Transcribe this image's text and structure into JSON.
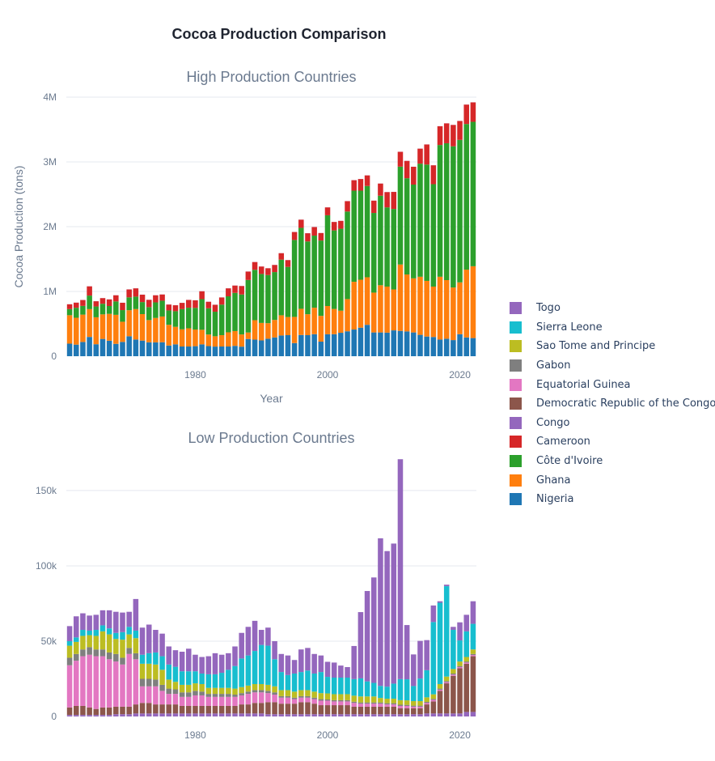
{
  "figure": {
    "title": "Cocoa Production Comparison"
  },
  "chart_data": [
    {
      "type": "bar",
      "stacked": true,
      "title": "High Production Countries",
      "xlabel": "Year",
      "ylabel": "Cocoa Production (tons)",
      "ylim": [
        0,
        4000000
      ],
      "y_ticks": [
        0,
        1000000,
        2000000,
        3000000,
        4000000
      ],
      "y_tick_labels": [
        "0",
        "1M",
        "2M",
        "3M",
        "4M"
      ],
      "x_ticks": [
        1980,
        2000,
        2020
      ],
      "x_tick_labels": [
        "1980",
        "2000",
        "2020"
      ],
      "grid": true,
      "x": [
        1961,
        1962,
        1963,
        1964,
        1965,
        1966,
        1967,
        1968,
        1969,
        1970,
        1971,
        1972,
        1973,
        1974,
        1975,
        1976,
        1977,
        1978,
        1979,
        1980,
        1981,
        1982,
        1983,
        1984,
        1985,
        1986,
        1987,
        1988,
        1989,
        1990,
        1991,
        1992,
        1993,
        1994,
        1995,
        1996,
        1997,
        1998,
        1999,
        2000,
        2001,
        2002,
        2003,
        2004,
        2005,
        2006,
        2007,
        2008,
        2009,
        2010,
        2011,
        2012,
        2013,
        2014,
        2015,
        2016,
        2017,
        2018,
        2019,
        2020,
        2021,
        2022
      ],
      "series": [
        {
          "name": "Nigeria",
          "color": "#1f77b4",
          "values": [
            194000,
            179000,
            220000,
            298000,
            185000,
            267000,
            239000,
            191000,
            221000,
            308000,
            258000,
            241000,
            215000,
            214000,
            216000,
            165000,
            183000,
            150000,
            150000,
            155000,
            183000,
            156000,
            149000,
            150000,
            150000,
            160000,
            148000,
            266000,
            256000,
            244000,
            270000,
            290000,
            320000,
            325000,
            203000,
            328000,
            325000,
            340000,
            225000,
            339000,
            340000,
            362000,
            385000,
            412000,
            441000,
            485000,
            367000,
            367000,
            364000,
            399000,
            391000,
            383000,
            367000,
            330000,
            304000,
            297000,
            257000,
            270000,
            249000,
            340000,
            290000,
            280000
          ]
        },
        {
          "name": "Ghana",
          "color": "#ff7f0e",
          "values": [
            439000,
            415000,
            422000,
            429000,
            416000,
            379000,
            415000,
            448000,
            311000,
            402000,
            470000,
            409000,
            343000,
            377000,
            397000,
            320000,
            271000,
            265000,
            281000,
            257000,
            225000,
            179000,
            159000,
            175000,
            219000,
            228000,
            188000,
            100000,
            300000,
            270000,
            240000,
            270000,
            312000,
            280000,
            404000,
            404000,
            323000,
            409000,
            398000,
            436000,
            390000,
            341000,
            497000,
            737000,
            740000,
            734000,
            615000,
            729000,
            711000,
            632000,
            1025000,
            879000,
            835000,
            897000,
            859000,
            778000,
            970000,
            905000,
            812000,
            800000,
            1047000,
            1109000
          ]
        },
        {
          "name": "Côte d'Ivoire",
          "color": "#2ca02c",
          "values": [
            94000,
            154000,
            135000,
            209000,
            167000,
            164000,
            121000,
            207000,
            180000,
            199000,
            192000,
            186000,
            200000,
            240000,
            244000,
            222000,
            241000,
            312000,
            318000,
            334000,
            473000,
            405000,
            379000,
            472000,
            556000,
            590000,
            617000,
            811000,
            778000,
            756000,
            743000,
            739000,
            859000,
            774000,
            1188000,
            1250000,
            1124000,
            1113000,
            1163000,
            1401000,
            1212000,
            1265000,
            1352000,
            1407000,
            1375000,
            1409000,
            1230000,
            1382000,
            1223000,
            1242000,
            1511000,
            1486000,
            1448000,
            1746000,
            1796000,
            1581000,
            2034000,
            2113000,
            2180000,
            2200000,
            2248000,
            2230000
          ]
        },
        {
          "name": "Cameroon",
          "color": "#d62728",
          "values": [
            75000,
            79000,
            91000,
            143000,
            81000,
            87000,
            102000,
            95000,
            113000,
            122000,
            128000,
            114000,
            113000,
            110000,
            96000,
            91000,
            92000,
            97000,
            120000,
            117000,
            122000,
            101000,
            107000,
            110000,
            123000,
            113000,
            131000,
            130000,
            120000,
            115000,
            105000,
            110000,
            100000,
            105000,
            123000,
            126000,
            127000,
            132000,
            116000,
            122000,
            131000,
            122000,
            160000,
            162000,
            180000,
            164000,
            190000,
            188000,
            236000,
            264000,
            229000,
            268000,
            275000,
            232000,
            310000,
            292000,
            290000,
            307000,
            330000,
            292000,
            300000,
            300000
          ]
        },
        {
          "name": "Congo",
          "color": "#9467bd",
          "values": [
            1000,
            1000,
            1000,
            1000,
            1000,
            1000,
            1000,
            1000,
            1000,
            1000,
            1000,
            1000,
            1000,
            1000,
            1000,
            1000,
            1000,
            1000,
            1000,
            1000,
            1000,
            1000,
            1000,
            1000,
            1000,
            1000,
            1000,
            1000,
            1000,
            1000,
            1000,
            1000,
            1000,
            1000,
            1000,
            1000,
            1000,
            1000,
            1000,
            1000,
            1000,
            1000,
            1000,
            1000,
            1000,
            1000,
            1000,
            1000,
            1000,
            1000,
            1000,
            1000,
            1000,
            1000,
            1000,
            1000,
            1000,
            1000,
            1000,
            1000,
            1000,
            1000
          ]
        }
      ]
    },
    {
      "type": "bar",
      "stacked": true,
      "title": "Low Production Countries",
      "ylim": [
        0,
        172000
      ],
      "y_ticks": [
        0,
        50000,
        100000,
        150000
      ],
      "y_tick_labels": [
        "0",
        "50k",
        "100k",
        "150k"
      ],
      "x_ticks": [
        1980,
        2000,
        2020
      ],
      "x_tick_labels": [
        "1980",
        "2000",
        "2020"
      ],
      "grid": true,
      "x": [
        1961,
        1962,
        1963,
        1964,
        1965,
        1966,
        1967,
        1968,
        1969,
        1970,
        1971,
        1972,
        1973,
        1974,
        1975,
        1976,
        1977,
        1978,
        1979,
        1980,
        1981,
        1982,
        1983,
        1984,
        1985,
        1986,
        1987,
        1988,
        1989,
        1990,
        1991,
        1992,
        1993,
        1994,
        1995,
        1996,
        1997,
        1998,
        1999,
        2000,
        2001,
        2002,
        2003,
        2004,
        2005,
        2006,
        2007,
        2008,
        2009,
        2010,
        2011,
        2012,
        2013,
        2014,
        2015,
        2016,
        2017,
        2018,
        2019,
        2020,
        2021,
        2022
      ],
      "series": [
        {
          "name": "Congo",
          "color": "#9467bd",
          "values": [
            1000,
            1000,
            1000,
            1000,
            1000,
            1000,
            1000,
            1500,
            1500,
            1500,
            2000,
            2000,
            2000,
            2000,
            2000,
            2000,
            2000,
            2000,
            2000,
            2000,
            2000,
            2000,
            2000,
            2000,
            2000,
            2000,
            2000,
            2000,
            2000,
            2000,
            1500,
            1500,
            1500,
            1500,
            1500,
            1500,
            1500,
            1500,
            1500,
            1500,
            1500,
            1500,
            1500,
            1500,
            1500,
            1500,
            1500,
            1500,
            1500,
            1500,
            1500,
            1500,
            1500,
            1500,
            2000,
            2000,
            2000,
            2000,
            2000,
            2000,
            3000,
            3000
          ]
        },
        {
          "name": "Democratic Republic of the Congo",
          "color": "#8c564b",
          "values": [
            5000,
            6000,
            6000,
            5000,
            4000,
            5000,
            5000,
            5000,
            5000,
            5000,
            6000,
            7000,
            7000,
            6000,
            6000,
            6000,
            6000,
            5000,
            5000,
            5000,
            5000,
            5000,
            5000,
            5000,
            5000,
            5000,
            6000,
            6000,
            7000,
            7000,
            8000,
            8000,
            7000,
            7000,
            7000,
            8000,
            8000,
            7000,
            6000,
            6000,
            6000,
            6000,
            6000,
            5000,
            5000,
            5000,
            5000,
            5000,
            5000,
            5000,
            4000,
            4000,
            4000,
            4000,
            6000,
            8000,
            15000,
            20000,
            25000,
            30000,
            32000,
            37000
          ]
        },
        {
          "name": "Equatorial Guinea",
          "color": "#e377c2",
          "values": [
            28000,
            30000,
            33000,
            35000,
            35000,
            34000,
            32000,
            30000,
            28000,
            35000,
            30000,
            11000,
            11000,
            12000,
            9000,
            7000,
            7000,
            6000,
            6000,
            7000,
            7000,
            6000,
            6000,
            6000,
            6000,
            6000,
            6000,
            7000,
            7000,
            7000,
            6000,
            5000,
            4000,
            4000,
            3000,
            3000,
            3000,
            3000,
            3000,
            3000,
            2500,
            2500,
            2500,
            2500,
            2000,
            2000,
            2000,
            2000,
            1500,
            1500,
            1500,
            1500,
            1000,
            1000,
            1000,
            1000,
            800,
            800,
            800,
            800,
            800,
            800
          ]
        },
        {
          "name": "Gabon",
          "color": "#7f7f7f",
          "values": [
            5000,
            4500,
            4500,
            5000,
            4500,
            4500,
            4500,
            5000,
            4500,
            4000,
            4000,
            5000,
            5000,
            4500,
            4000,
            3500,
            3000,
            3000,
            3000,
            3000,
            2500,
            2000,
            2000,
            2000,
            2000,
            1500,
            1500,
            1500,
            1500,
            1500,
            1500,
            1500,
            1000,
            1000,
            1000,
            1000,
            1000,
            1000,
            1000,
            800,
            800,
            800,
            800,
            800,
            800,
            800,
            800,
            800,
            800,
            800,
            800,
            700,
            700,
            700,
            700,
            700,
            700,
            700,
            700,
            700,
            700,
            700
          ]
        },
        {
          "name": "Sao Tome and Principe",
          "color": "#bcbd22",
          "values": [
            8000,
            8000,
            9000,
            8000,
            9000,
            12000,
            12000,
            10000,
            12000,
            9000,
            10000,
            10000,
            10000,
            10000,
            10000,
            6000,
            5000,
            5000,
            5000,
            5000,
            5000,
            4000,
            4000,
            4000,
            4000,
            4000,
            4000,
            4000,
            4000,
            4000,
            4000,
            4000,
            4000,
            4000,
            4000,
            4000,
            4000,
            4000,
            4000,
            4000,
            4000,
            4000,
            4000,
            4000,
            4000,
            4000,
            4000,
            3000,
            3000,
            3000,
            3000,
            3000,
            3000,
            3000,
            3000,
            3000,
            3000,
            3000,
            3000,
            3000,
            3000,
            3000
          ]
        },
        {
          "name": "Sierra Leone",
          "color": "#17becf",
          "values": [
            3000,
            3000,
            4000,
            3000,
            4000,
            4000,
            4000,
            4000,
            5000,
            5000,
            5000,
            6000,
            7000,
            8000,
            9000,
            10000,
            10000,
            9000,
            9000,
            8000,
            7000,
            9000,
            9000,
            10000,
            12000,
            15000,
            19000,
            20000,
            22000,
            26000,
            26000,
            18000,
            12000,
            10000,
            12000,
            12000,
            13000,
            12000,
            14000,
            11000,
            11000,
            11000,
            11000,
            11000,
            12000,
            10000,
            9000,
            8000,
            8000,
            10000,
            14000,
            14000,
            10000,
            15000,
            18000,
            48000,
            54000,
            60000,
            26000,
            14000,
            17000,
            17000
          ]
        },
        {
          "name": "Togo",
          "color": "#9467bd",
          "values": [
            10000,
            14000,
            11000,
            10000,
            10000,
            10000,
            12000,
            14000,
            13000,
            10000,
            21000,
            18000,
            19000,
            15000,
            15000,
            12000,
            11000,
            13000,
            15000,
            11000,
            11000,
            12000,
            14000,
            12000,
            11000,
            13000,
            17000,
            19000,
            20000,
            10000,
            12000,
            12000,
            12000,
            13000,
            9000,
            15000,
            15000,
            13000,
            11000,
            10000,
            10000,
            8000,
            7000,
            22000,
            44000,
            60000,
            70000,
            98000,
            90000,
            93000,
            146000,
            36000,
            21000,
            25000,
            20000,
            11000,
            1000,
            1000,
            2000,
            12000,
            11000,
            15000
          ]
        }
      ]
    }
  ],
  "legend": [
    {
      "label": "Togo",
      "color": "#9467bd"
    },
    {
      "label": "Sierra Leone",
      "color": "#17becf"
    },
    {
      "label": "Sao Tome and Principe",
      "color": "#bcbd22"
    },
    {
      "label": "Gabon",
      "color": "#7f7f7f"
    },
    {
      "label": "Equatorial Guinea",
      "color": "#e377c2"
    },
    {
      "label": "Democratic Republic of the Congo",
      "color": "#8c564b"
    },
    {
      "label": "Congo",
      "color": "#9467bd"
    },
    {
      "label": "Cameroon",
      "color": "#d62728"
    },
    {
      "label": "Côte d'Ivoire",
      "color": "#2ca02c"
    },
    {
      "label": "Ghana",
      "color": "#ff7f0e"
    },
    {
      "label": "Nigeria",
      "color": "#1f77b4"
    }
  ]
}
